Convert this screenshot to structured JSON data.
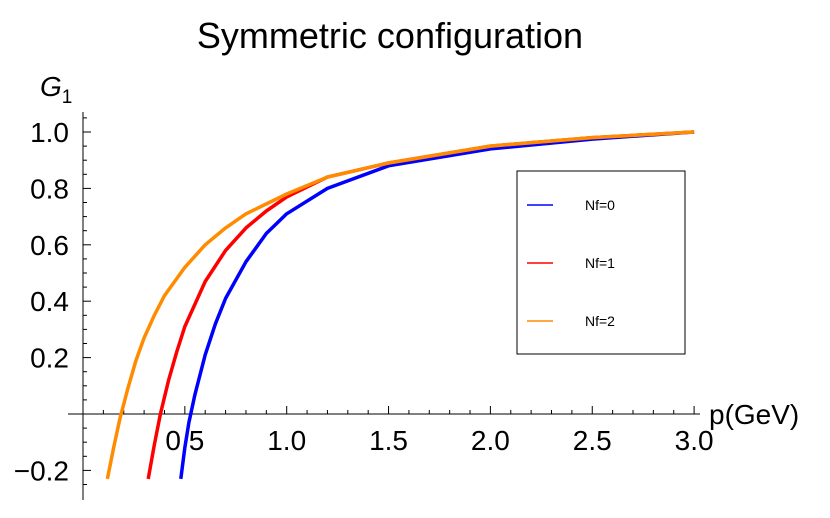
{
  "chart_data": {
    "type": "line",
    "title": "Symmetric configuration",
    "xlabel": "p(GeV)",
    "ylabel_symbol": "G",
    "ylabel_subscript": "1",
    "xlim": [
      0.0,
      3.0
    ],
    "ylim": [
      -0.25,
      1.05
    ],
    "xticks": [
      "0.5",
      "1.0",
      "1.5",
      "2.0",
      "2.5",
      "3.0"
    ],
    "yticks": [
      "−0.2",
      "0.2",
      "0.4",
      "0.6",
      "0.8",
      "1.0"
    ],
    "legend_position": "right",
    "series": [
      {
        "name": "Nf=0",
        "color": "#0000ff",
        "x": [
          0.48,
          0.5,
          0.52,
          0.55,
          0.6,
          0.65,
          0.7,
          0.8,
          0.9,
          1.0,
          1.2,
          1.5,
          2.0,
          2.5,
          3.0
        ],
        "y": [
          -0.23,
          -0.12,
          -0.03,
          0.07,
          0.21,
          0.32,
          0.41,
          0.54,
          0.64,
          0.71,
          0.8,
          0.88,
          0.94,
          0.975,
          1.0
        ]
      },
      {
        "name": "Nf=1",
        "color": "#ff0000",
        "x": [
          0.32,
          0.35,
          0.38,
          0.42,
          0.46,
          0.5,
          0.6,
          0.7,
          0.8,
          0.9,
          1.0,
          1.2,
          1.5,
          2.0,
          2.5,
          3.0
        ],
        "y": [
          -0.23,
          -0.11,
          0.0,
          0.12,
          0.22,
          0.31,
          0.47,
          0.58,
          0.66,
          0.72,
          0.77,
          0.84,
          0.89,
          0.95,
          0.98,
          1.0
        ]
      },
      {
        "name": "Nf=2",
        "color": "#ff8c00",
        "x": [
          0.12,
          0.15,
          0.18,
          0.22,
          0.26,
          0.3,
          0.35,
          0.4,
          0.5,
          0.6,
          0.7,
          0.8,
          1.0,
          1.2,
          1.5,
          2.0,
          2.5,
          3.0
        ],
        "y": [
          -0.23,
          -0.12,
          -0.02,
          0.09,
          0.19,
          0.27,
          0.35,
          0.42,
          0.52,
          0.6,
          0.66,
          0.71,
          0.78,
          0.84,
          0.89,
          0.95,
          0.98,
          1.0
        ]
      }
    ]
  }
}
